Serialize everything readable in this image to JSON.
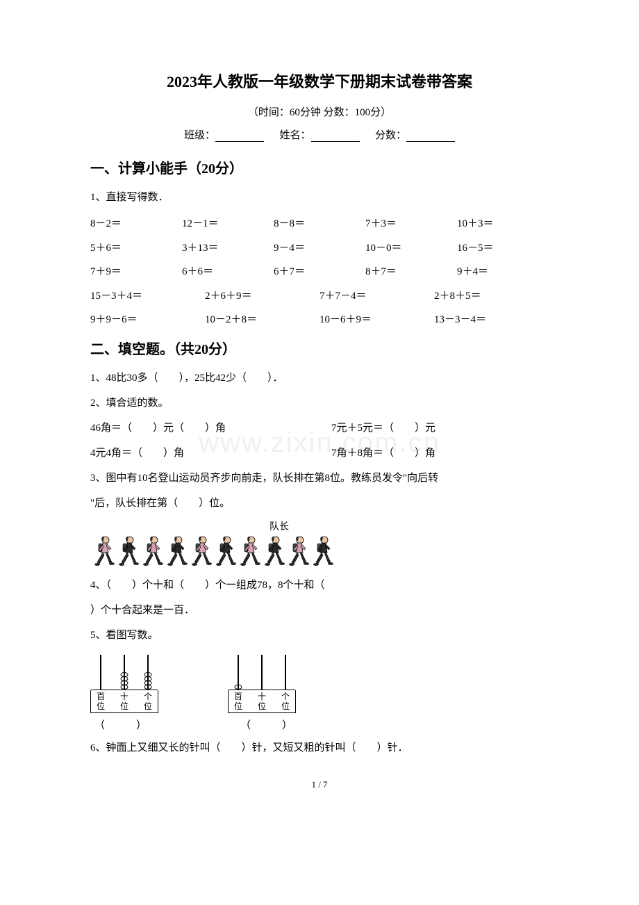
{
  "title": "2023年人教版一年级数学下册期末试卷带答案",
  "subtitle": "（时间：60分钟    分数：100分）",
  "blanks": {
    "class_label": "班级：",
    "name_label": "姓名：",
    "score_label": "分数："
  },
  "section1": {
    "header": "一、计算小能手（20分）",
    "q1_label": "1、直接写得数．",
    "rows5": [
      [
        "8－2＝",
        "12－1＝",
        "8－8＝",
        "7＋3＝",
        "10＋3＝"
      ],
      [
        "5＋6＝",
        "3＋13＝",
        "9－4＝",
        "10－0＝",
        "16－5＝"
      ],
      [
        "7＋9＝",
        "6＋6＝",
        "6＋7＝",
        "8＋7＝",
        "9＋4＝"
      ]
    ],
    "rows4": [
      [
        "15－3＋4＝",
        "2＋6＋9＝",
        "7＋7－4＝",
        "2＋8＋5＝"
      ],
      [
        "9＋9－6＝",
        "10－2＋8＝",
        "10－6＋9＝",
        "13－3－4＝"
      ]
    ]
  },
  "section2": {
    "header": "二、填空题。（共20分）",
    "q1": "1、48比30多（　　），25比42少（　　）．",
    "q2": "2、填合适的数。",
    "q2_line1a": "46角＝（　　）元（　　）角",
    "q2_line1b": "7元＋5元＝（　　）元",
    "q2_line2a": "4元4角＝（　　）角",
    "q2_line2b": "7角＋8角＝（　　）角",
    "q3_part1": "3、图中有10名登山运动员齐步向前走，队长排在第8位。教练员发令\"向后转",
    "q3_part2": "\"后，队长排在第（　　）位。",
    "hiker_label": "队长",
    "q4_part1": "4、（　　）个十和（　　）个一组成78，8个十和（",
    "q4_part2": "）个十合起来是一百．",
    "q5": "5、看图写数。",
    "paren1": "（　　　）",
    "paren2": "（　　　）",
    "q6": "6、钟面上又细又长的针叫（　　）针，又短又粗的针叫（　　）针．"
  },
  "abacus1": {
    "beads": [
      0,
      4,
      4
    ],
    "labels": [
      "百位",
      "十位",
      "个位"
    ]
  },
  "abacus2": {
    "beads": [
      1,
      0,
      0
    ],
    "labels": [
      "百位",
      "十位",
      "个位"
    ]
  },
  "watermark": "www.zixin.com.cn",
  "footer": "1 / 7",
  "colors": {
    "text": "#000000",
    "background": "#ffffff",
    "watermark": "#888888",
    "hiker_pink": "#d4a5b0",
    "hiker_dark": "#2a2a2a",
    "hiker_skin": "#e8c8a8"
  }
}
